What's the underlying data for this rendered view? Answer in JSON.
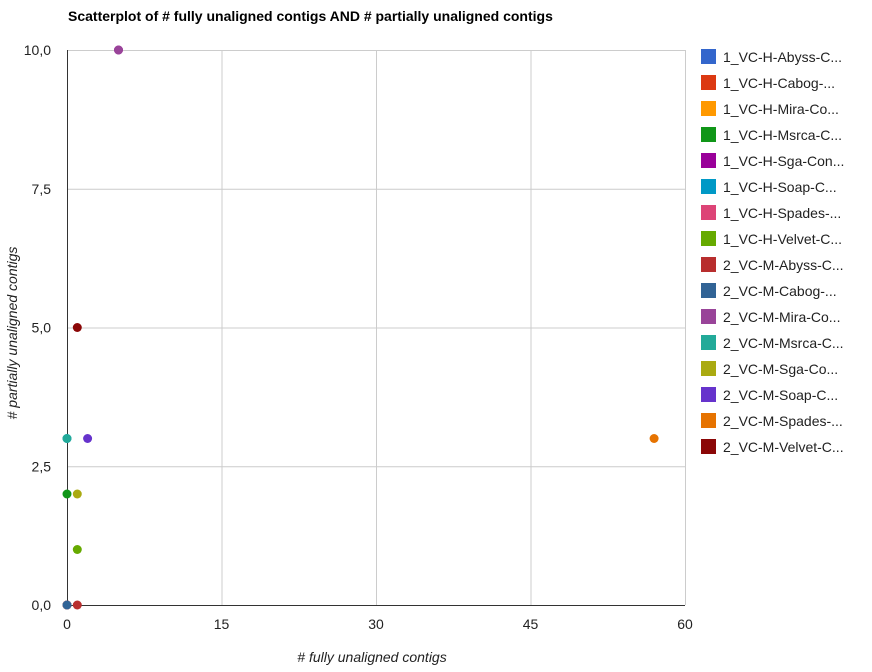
{
  "chart_data": {
    "type": "scatter",
    "title": "Scatterplot of # fully unaligned contigs AND # partially unaligned contigs",
    "xlabel": "# fully unaligned contigs",
    "ylabel": "# partially unaligned contigs",
    "xlim": [
      0,
      60
    ],
    "ylim": [
      0,
      10
    ],
    "x_ticks": [
      "0",
      "15",
      "30",
      "45",
      "60"
    ],
    "y_ticks": [
      "0,0",
      "2,5",
      "5,0",
      "7,5",
      "10,0"
    ],
    "grid": true,
    "legend_position": "right",
    "series": [
      {
        "name": "1_VC-H-Abyss-C...",
        "color": "#3366cc",
        "points": [
          [
            0,
            0
          ]
        ]
      },
      {
        "name": "1_VC-H-Cabog-...",
        "color": "#dc3912",
        "points": [
          [
            0,
            0
          ]
        ]
      },
      {
        "name": "1_VC-H-Mira-Co...",
        "color": "#ff9900",
        "points": [
          [
            0,
            0
          ]
        ]
      },
      {
        "name": "1_VC-H-Msrca-C...",
        "color": "#109618",
        "points": [
          [
            0,
            2
          ]
        ]
      },
      {
        "name": "1_VC-H-Sga-Con...",
        "color": "#990099",
        "points": [
          [
            5,
            10
          ]
        ]
      },
      {
        "name": "1_VC-H-Soap-C...",
        "color": "#0099c6",
        "points": [
          [
            0,
            3
          ]
        ]
      },
      {
        "name": "1_VC-H-Spades-...",
        "color": "#dd4477",
        "points": [
          [
            0,
            0
          ]
        ]
      },
      {
        "name": "1_VC-H-Velvet-C...",
        "color": "#66aa00",
        "points": [
          [
            1,
            1
          ]
        ]
      },
      {
        "name": "2_VC-M-Abyss-C...",
        "color": "#b82e2e",
        "points": [
          [
            1,
            0
          ]
        ]
      },
      {
        "name": "2_VC-M-Cabog-...",
        "color": "#316395",
        "points": [
          [
            0,
            0
          ]
        ]
      },
      {
        "name": "2_VC-M-Mira-Co...",
        "color": "#994499",
        "points": [
          [
            5,
            10
          ]
        ]
      },
      {
        "name": "2_VC-M-Msrca-C...",
        "color": "#22aa99",
        "points": [
          [
            0,
            3
          ]
        ]
      },
      {
        "name": "2_VC-M-Sga-Co...",
        "color": "#aaaa11",
        "points": [
          [
            1,
            2
          ]
        ]
      },
      {
        "name": "2_VC-M-Soap-C...",
        "color": "#6633cc",
        "points": [
          [
            2,
            3
          ]
        ]
      },
      {
        "name": "2_VC-M-Spades-...",
        "color": "#e67300",
        "points": [
          [
            57,
            3
          ]
        ]
      },
      {
        "name": "2_VC-M-Velvet-C...",
        "color": "#8b0707",
        "points": [
          [
            1,
            5
          ]
        ]
      }
    ]
  }
}
